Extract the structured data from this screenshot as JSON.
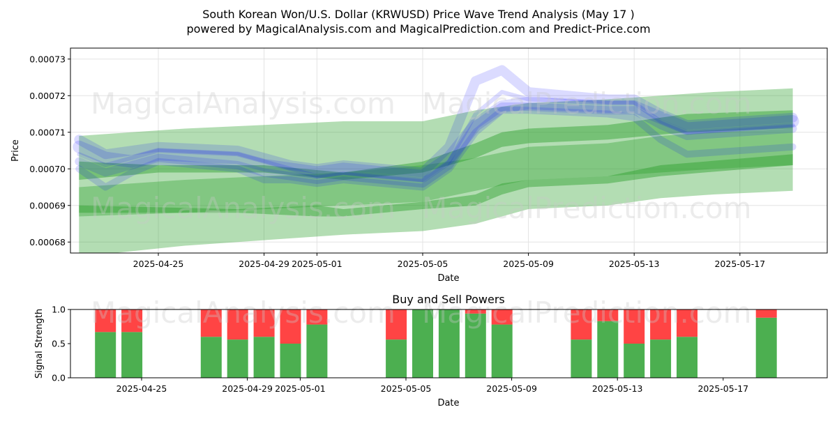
{
  "title_line1": "South Korean Won/U.S. Dollar (KRWUSD) Price Wave Trend Analysis (May 17 )",
  "title_line2": "powered by MagicalAnalysis.com and MagicalPrediction.com and Predict-Price.com",
  "watermarks": [
    "MagicalAnalysis.com",
    "MagicalPrediction.com"
  ],
  "colors": {
    "green_band": "#2ca02c",
    "blue_wave": "#0000ff",
    "buy": "#4caf50",
    "sell": "#ff4444"
  },
  "chart_data": [
    {
      "type": "area",
      "xlabel": "Date",
      "ylabel": "Price",
      "ylim": [
        0.000677,
        0.000733
      ],
      "x_ticks": [
        "2025-04-25",
        "2025-04-29",
        "2025-05-01",
        "2025-05-05",
        "2025-05-09",
        "2025-05-13",
        "2025-05-17"
      ],
      "y_ticks": [
        "0.00068",
        "0.00069",
        "0.00070",
        "0.00071",
        "0.00072",
        "0.00073"
      ],
      "grid": true,
      "bands": [
        {
          "name": "wide",
          "x": [
            "2025-04-22",
            "2025-04-26",
            "2025-05-02",
            "2025-05-05",
            "2025-05-07",
            "2025-05-09",
            "2025-05-12",
            "2025-05-14",
            "2025-05-16",
            "2025-05-19"
          ],
          "upper": [
            0.000709,
            0.000711,
            0.000713,
            0.000713,
            0.000716,
            0.000718,
            0.000719,
            0.00072,
            0.000721,
            0.000722
          ],
          "lower": [
            0.000687,
            0.000688,
            0.00069,
            0.000691,
            0.000694,
            0.000697,
            0.000698,
            0.000699,
            0.0007,
            0.000701
          ]
        },
        {
          "name": "low",
          "x": [
            "2025-04-22",
            "2025-04-26",
            "2025-05-02",
            "2025-05-05",
            "2025-05-07",
            "2025-05-09",
            "2025-05-12",
            "2025-05-14",
            "2025-05-16",
            "2025-05-19"
          ],
          "upper": [
            0.000695,
            0.000697,
            0.000699,
            0.000701,
            0.000703,
            0.000706,
            0.000707,
            0.000709,
            0.00071,
            0.000711
          ],
          "lower": [
            0.000676,
            0.000679,
            0.000682,
            0.000683,
            0.000685,
            0.000689,
            0.00069,
            0.000692,
            0.000693,
            0.000694
          ]
        },
        {
          "name": "trend1",
          "x": [
            "2025-04-22",
            "2025-04-25",
            "2025-04-29",
            "2025-05-02",
            "2025-05-05",
            "2025-05-07",
            "2025-05-08",
            "2025-05-09",
            "2025-05-12",
            "2025-05-15",
            "2025-05-19"
          ],
          "upper": [
            0.000702,
            0.000701,
            0.000701,
            0.000699,
            0.000702,
            0.000707,
            0.00071,
            0.000711,
            0.000712,
            0.000715,
            0.000716
          ],
          "lower": [
            0.000697,
            0.000699,
            0.000699,
            0.000697,
            0.000699,
            0.000703,
            0.000706,
            0.000707,
            0.000708,
            0.00071,
            0.000711
          ]
        },
        {
          "name": "trend2",
          "x": [
            "2025-04-22",
            "2025-04-28",
            "2025-05-01",
            "2025-05-02",
            "2025-05-05",
            "2025-05-07",
            "2025-05-08",
            "2025-05-09",
            "2025-05-12",
            "2025-05-14",
            "2025-05-19"
          ],
          "upper": [
            0.00069,
            0.000689,
            0.00069,
            0.000689,
            0.000691,
            0.000693,
            0.000696,
            0.000697,
            0.000698,
            0.000701,
            0.000704
          ],
          "lower": [
            0.000688,
            0.000688,
            0.000687,
            0.000687,
            0.000689,
            0.00069,
            0.000693,
            0.000695,
            0.000696,
            0.000698,
            0.000701
          ]
        }
      ],
      "waves": [
        {
          "x": [
            "2025-04-22",
            "2025-04-23",
            "2025-04-24",
            "2025-04-25",
            "2025-04-28",
            "2025-04-29",
            "2025-04-30",
            "2025-05-01",
            "2025-05-02",
            "2025-05-05",
            "2025-05-06",
            "2025-05-07",
            "2025-05-08",
            "2025-05-09",
            "2025-05-12",
            "2025-05-13",
            "2025-05-14",
            "2025-05-15",
            "2025-05-19"
          ],
          "y": [
            0.000706,
            0.000703,
            0.000702,
            0.000704,
            0.000703,
            0.000701,
            0.0007,
            0.000699,
            0.0007,
            0.000698,
            0.000703,
            0.000712,
            0.000717,
            0.000718,
            0.000717,
            0.000717,
            0.000714,
            0.000711,
            0.000713
          ]
        },
        {
          "x": [
            "2025-04-22",
            "2025-04-23",
            "2025-04-24",
            "2025-04-25",
            "2025-04-28",
            "2025-04-29",
            "2025-04-30",
            "2025-05-01",
            "2025-05-02",
            "2025-05-05",
            "2025-05-06",
            "2025-05-07",
            "2025-05-08",
            "2025-05-09",
            "2025-05-12",
            "2025-05-13",
            "2025-05-14",
            "2025-05-15",
            "2025-05-19"
          ],
          "y": [
            0.000702,
            0.000699,
            0.000701,
            0.000703,
            0.000701,
            0.000699,
            0.000698,
            0.000697,
            0.000698,
            0.000696,
            0.000701,
            0.000712,
            0.000717,
            0.000717,
            0.000716,
            0.000716,
            0.000712,
            0.000709,
            0.000711
          ]
        },
        {
          "x": [
            "2025-04-22",
            "2025-04-23",
            "2025-04-24",
            "2025-04-25",
            "2025-04-28",
            "2025-04-29",
            "2025-04-30",
            "2025-05-01",
            "2025-05-02",
            "2025-05-05",
            "2025-05-06",
            "2025-05-07",
            "2025-05-08",
            "2025-05-09",
            "2025-05-12",
            "2025-05-13",
            "2025-05-14",
            "2025-05-15",
            "2025-05-19"
          ],
          "y": [
            0.000708,
            0.000704,
            0.000705,
            0.000706,
            0.000705,
            0.000703,
            0.000701,
            0.0007,
            0.000701,
            0.000699,
            0.000706,
            0.000724,
            0.000727,
            0.000721,
            0.000719,
            0.000719,
            0.000715,
            0.000712,
            0.000714
          ]
        },
        {
          "x": [
            "2025-04-22",
            "2025-04-23",
            "2025-04-24",
            "2025-04-25",
            "2025-04-28",
            "2025-04-29",
            "2025-04-30",
            "2025-05-01",
            "2025-05-02",
            "2025-05-05",
            "2025-05-06",
            "2025-05-07",
            "2025-05-08",
            "2025-05-09",
            "2025-05-12",
            "2025-05-13",
            "2025-05-14",
            "2025-05-15",
            "2025-05-19"
          ],
          "y": [
            0.0007,
            0.000695,
            0.000699,
            0.000702,
            0.0007,
            0.000697,
            0.000697,
            0.000696,
            0.000697,
            0.000695,
            0.0007,
            0.00071,
            0.000716,
            0.000716,
            0.000715,
            0.000714,
            0.000708,
            0.000704,
            0.000706
          ]
        },
        {
          "x": [
            "2025-04-22",
            "2025-04-23",
            "2025-04-24",
            "2025-04-25",
            "2025-04-28",
            "2025-04-29",
            "2025-04-30",
            "2025-05-01",
            "2025-05-02",
            "2025-05-05",
            "2025-05-06",
            "2025-05-07",
            "2025-05-08",
            "2025-05-09",
            "2025-05-12",
            "2025-05-13",
            "2025-05-14",
            "2025-05-15",
            "2025-05-19"
          ],
          "y": [
            0.000704,
            0.000701,
            0.000703,
            0.000705,
            0.000704,
            0.000702,
            0.0007,
            0.000698,
            0.000699,
            0.000697,
            0.000702,
            0.000715,
            0.000721,
            0.000719,
            0.000718,
            0.000718,
            0.000713,
            0.00071,
            0.000712
          ]
        }
      ]
    },
    {
      "type": "bar",
      "title": "Buy and Sell Powers",
      "xlabel": "Date",
      "ylabel": "Signal Strength",
      "ylim": [
        0,
        1
      ],
      "y_ticks": [
        "0.0",
        "0.5",
        "1.0"
      ],
      "x_ticks": [
        "2025-04-25",
        "2025-04-29",
        "2025-05-01",
        "2025-05-05",
        "2025-05-09",
        "2025-05-13",
        "2025-05-17"
      ],
      "categories": [
        "2025-04-23",
        "2025-04-24",
        "2025-04-27",
        "2025-04-28",
        "2025-04-29",
        "2025-04-30",
        "2025-05-01",
        "2025-05-04",
        "2025-05-05",
        "2025-05-06",
        "2025-05-07",
        "2025-05-08",
        "2025-05-11",
        "2025-05-12",
        "2025-05-13",
        "2025-05-14",
        "2025-05-15",
        "2025-05-18"
      ],
      "series": [
        {
          "name": "buy",
          "values": [
            0.67,
            0.67,
            0.6,
            0.56,
            0.6,
            0.5,
            0.78,
            0.56,
            1.0,
            1.0,
            0.94,
            0.78,
            0.56,
            0.83,
            0.5,
            0.56,
            0.6,
            0.88
          ]
        },
        {
          "name": "sell",
          "values": [
            0.33,
            0.33,
            0.4,
            0.44,
            0.4,
            0.5,
            0.22,
            0.44,
            0.0,
            0.0,
            0.06,
            0.22,
            0.44,
            0.17,
            0.5,
            0.44,
            0.4,
            0.12
          ]
        }
      ]
    }
  ]
}
